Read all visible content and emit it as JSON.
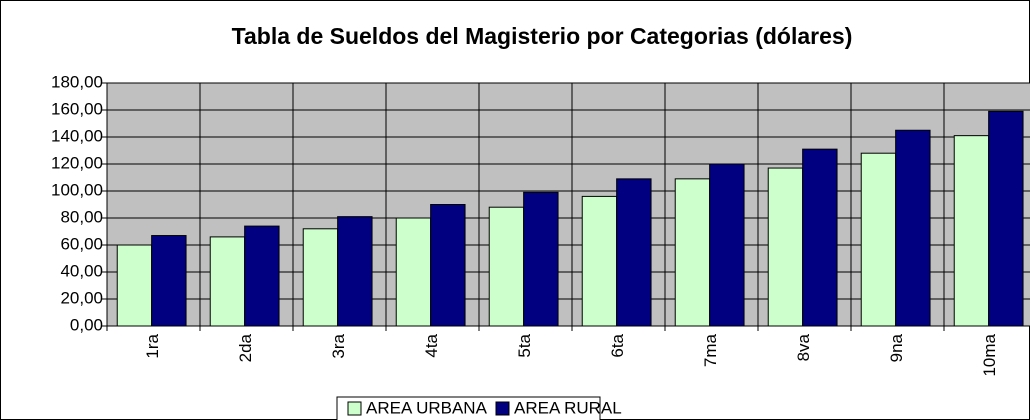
{
  "chart_data": {
    "type": "bar",
    "title": "Tabla de Sueldos del Magisterio por Categorias (dólares)",
    "categories": [
      "1ra",
      "2da",
      "3ra",
      "4ta",
      "5ta",
      "6ta",
      "7ma",
      "8va",
      "9na",
      "10ma"
    ],
    "series": [
      {
        "name": "AREA URBANA",
        "color": "#ccffcc",
        "values": [
          60,
          66,
          72,
          80,
          88,
          96,
          109,
          117,
          128,
          141
        ]
      },
      {
        "name": "AREA RURAL",
        "color": "#000080",
        "values": [
          67,
          74,
          81,
          90,
          99,
          109,
          120,
          131,
          145,
          159
        ]
      }
    ],
    "ylim": [
      0,
      180
    ],
    "yticks": [
      {
        "value": 0,
        "label": "0,00"
      },
      {
        "value": 20,
        "label": "20,00"
      },
      {
        "value": 40,
        "label": "40,00"
      },
      {
        "value": 60,
        "label": "60,00"
      },
      {
        "value": 80,
        "label": "80,00"
      },
      {
        "value": 100,
        "label": "100,00"
      },
      {
        "value": 120,
        "label": "120,00"
      },
      {
        "value": 140,
        "label": "140,00"
      },
      {
        "value": 160,
        "label": "160,00"
      },
      {
        "value": 180,
        "label": "180,00"
      }
    ],
    "grid": true,
    "plot_background": "#c0c0c0",
    "legend": "bottom"
  }
}
